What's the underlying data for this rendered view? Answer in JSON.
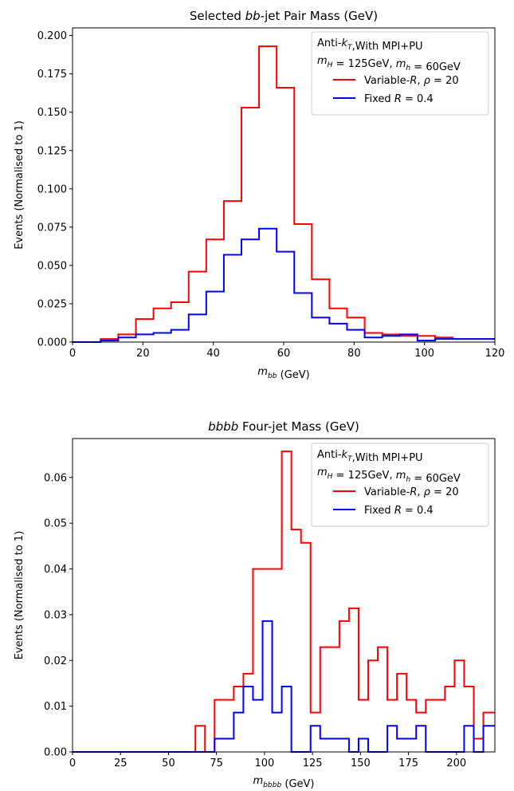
{
  "chart_data": [
    {
      "type": "histogram-step",
      "title_parts": [
        {
          "t": "Selected ",
          "i": false
        },
        {
          "t": "bb",
          "i": true
        },
        {
          "t": "-jet Pair Mass (GeV)",
          "i": false
        }
      ],
      "xlabel_parts": [
        {
          "t": "m",
          "i": true,
          "sub": "bb"
        },
        {
          "t": " (GeV)",
          "i": false
        }
      ],
      "ylabel": "Events (Normalised to 1)",
      "xlim": [
        0,
        120
      ],
      "ylim": [
        0,
        0.205
      ],
      "xticks": [
        0,
        20,
        40,
        60,
        80,
        100,
        120
      ],
      "xtick_labels": [
        "0",
        "20",
        "40",
        "60",
        "80",
        "100",
        "120"
      ],
      "yticks": [
        0,
        0.025,
        0.05,
        0.075,
        0.1,
        0.125,
        0.15,
        0.175,
        0.2
      ],
      "ytick_labels": [
        "0.000",
        "0.025",
        "0.050",
        "0.075",
        "0.100",
        "0.125",
        "0.150",
        "0.175",
        "0.200"
      ],
      "legend_position": "top-right",
      "legend_header": [
        [
          {
            "t": "Anti-",
            "i": false
          },
          {
            "t": "k",
            "i": true,
            "sub": "T"
          },
          {
            "t": ",With MPI+PU",
            "i": false
          }
        ],
        [
          {
            "t": "m",
            "i": true,
            "sub": "H"
          },
          {
            "t": " = 125GeV, ",
            "i": false
          },
          {
            "t": "m",
            "i": true,
            "sub": "h"
          },
          {
            "t": " = 60GeV",
            "i": false
          }
        ]
      ],
      "bin_edges": [
        0,
        8,
        13,
        18,
        23,
        28,
        33,
        38,
        43,
        48,
        53,
        58,
        63,
        68,
        73,
        78,
        83,
        88,
        93,
        98,
        103,
        108,
        113,
        120
      ],
      "series": [
        {
          "color": "#ff0000",
          "legend_parts": [
            {
              "t": "Variable-",
              "i": false
            },
            {
              "t": "R",
              "i": true
            },
            {
              "t": ", ",
              "i": false
            },
            {
              "t": "ρ",
              "i": true
            },
            {
              "t": " = 20",
              "i": false
            }
          ],
          "values": [
            0.0,
            0.002,
            0.005,
            0.015,
            0.022,
            0.026,
            0.046,
            0.067,
            0.092,
            0.153,
            0.193,
            0.166,
            0.077,
            0.041,
            0.022,
            0.016,
            0.006,
            0.005,
            0.004,
            0.004,
            0.003,
            0.002,
            0.002
          ]
        },
        {
          "color": "#0000ff",
          "legend_parts": [
            {
              "t": "Fixed ",
              "i": false
            },
            {
              "t": "R",
              "i": true
            },
            {
              "t": " = 0.4",
              "i": false
            }
          ],
          "values": [
            0.0,
            0.001,
            0.003,
            0.005,
            0.006,
            0.008,
            0.018,
            0.033,
            0.057,
            0.067,
            0.074,
            0.059,
            0.032,
            0.016,
            0.012,
            0.008,
            0.003,
            0.004,
            0.005,
            0.001,
            0.002,
            0.002,
            0.002
          ]
        }
      ]
    },
    {
      "type": "histogram-step",
      "title_parts": [
        {
          "t": "bbbb",
          "i": true
        },
        {
          "t": " Four-jet Mass (GeV)",
          "i": false
        }
      ],
      "xlabel_parts": [
        {
          "t": "m",
          "i": true,
          "sub": "bbbb"
        },
        {
          "t": " (GeV)",
          "i": false
        }
      ],
      "ylabel": "Events (Normalised to 1)",
      "xlim": [
        0,
        220
      ],
      "ylim": [
        0,
        0.0685
      ],
      "xticks": [
        0,
        25,
        50,
        75,
        100,
        125,
        150,
        175,
        200
      ],
      "xtick_labels": [
        "0",
        "25",
        "50",
        "75",
        "100",
        "125",
        "150",
        "175",
        "200"
      ],
      "yticks": [
        0,
        0.01,
        0.02,
        0.03,
        0.04,
        0.05,
        0.06
      ],
      "ytick_labels": [
        "0.00",
        "0.01",
        "0.02",
        "0.03",
        "0.04",
        "0.05",
        "0.06"
      ],
      "legend_position": "top-right",
      "legend_header": [
        [
          {
            "t": "Anti-",
            "i": false
          },
          {
            "t": "k",
            "i": true,
            "sub": "T"
          },
          {
            "t": ",With MPI+PU",
            "i": false
          }
        ],
        [
          {
            "t": "m",
            "i": true,
            "sub": "H"
          },
          {
            "t": " = 125GeV, ",
            "i": false
          },
          {
            "t": "m",
            "i": true,
            "sub": "h"
          },
          {
            "t": " = 60GeV",
            "i": false
          }
        ]
      ],
      "bin_edges": [
        0,
        64,
        69,
        74,
        79,
        84,
        89,
        94,
        99,
        104,
        109,
        114,
        119,
        124,
        129,
        134,
        139,
        144,
        149,
        154,
        159,
        164,
        169,
        174,
        179,
        184,
        189,
        194,
        199,
        204,
        209,
        214,
        220
      ],
      "series": [
        {
          "color": "#ff0000",
          "legend_parts": [
            {
              "t": "Variable-",
              "i": false
            },
            {
              "t": "R",
              "i": true
            },
            {
              "t": ", ",
              "i": false
            },
            {
              "t": "ρ",
              "i": true
            },
            {
              "t": " = 20",
              "i": false
            }
          ],
          "values": [
            0.0,
            0.0057,
            0.0,
            0.0114,
            0.0114,
            0.0143,
            0.0171,
            0.04,
            0.04,
            0.04,
            0.0657,
            0.0486,
            0.0457,
            0.0086,
            0.0229,
            0.0229,
            0.0286,
            0.0314,
            0.0114,
            0.02,
            0.0229,
            0.0114,
            0.0171,
            0.0114,
            0.0086,
            0.0114,
            0.0114,
            0.0143,
            0.02,
            0.0143,
            0.0029,
            0.0086
          ]
        },
        {
          "color": "#0000ff",
          "legend_parts": [
            {
              "t": "Fixed ",
              "i": false
            },
            {
              "t": "R",
              "i": true
            },
            {
              "t": " = 0.4",
              "i": false
            }
          ],
          "values": [
            0.0,
            0.0,
            0.0,
            0.0029,
            0.0029,
            0.0086,
            0.0143,
            0.0114,
            0.0286,
            0.0086,
            0.0143,
            0.0,
            0.0,
            0.0057,
            0.0029,
            0.0029,
            0.0029,
            0.0,
            0.0029,
            0.0,
            0.0,
            0.0057,
            0.0029,
            0.0029,
            0.0057,
            0.0,
            0.0,
            0.0,
            0.0,
            0.0057,
            0.0,
            0.0057
          ]
        }
      ]
    }
  ]
}
